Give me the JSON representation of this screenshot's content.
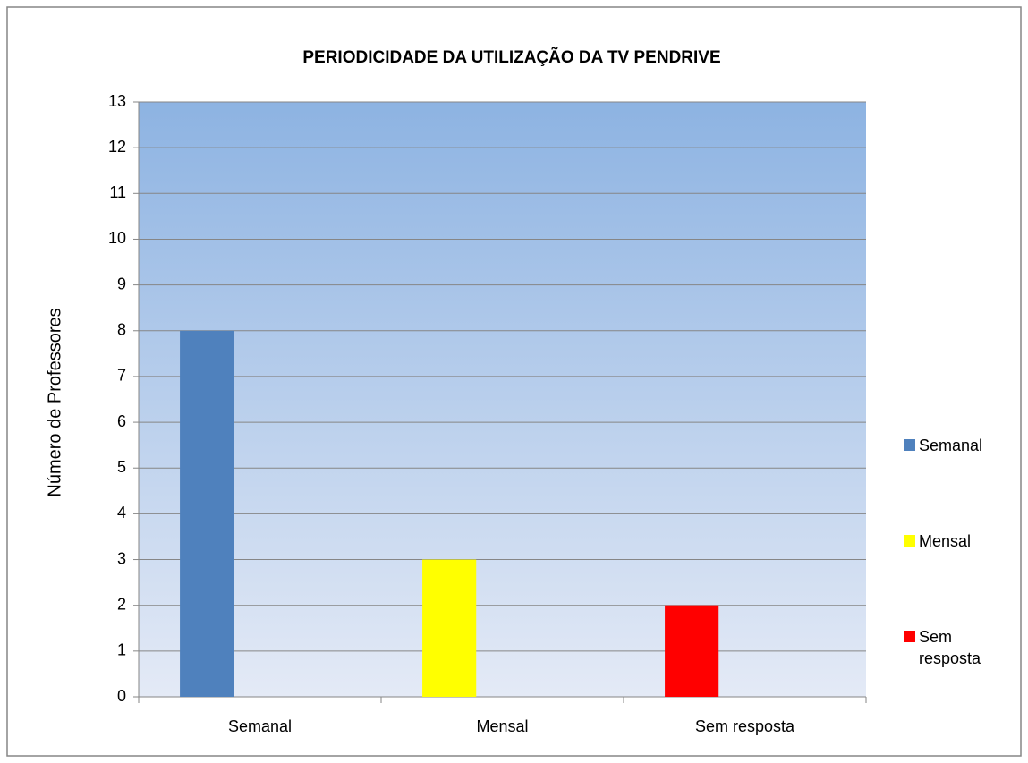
{
  "chart_data": {
    "type": "bar",
    "title": "PERIODICIDADE DA  UTILIZAÇÃO DA TV PENDRIVE",
    "y_label": "Número de Professores",
    "categories": [
      "Semanal",
      "Mensal",
      "Sem resposta"
    ],
    "values": [
      8,
      3,
      2
    ],
    "colors": [
      "#4f81bd",
      "#ffff00",
      "#ff0000"
    ],
    "ylim": [
      0,
      13
    ],
    "yticks": [
      0,
      1,
      2,
      3,
      4,
      5,
      6,
      7,
      8,
      9,
      10,
      11,
      12,
      13
    ],
    "grid": true,
    "legend": "right"
  }
}
